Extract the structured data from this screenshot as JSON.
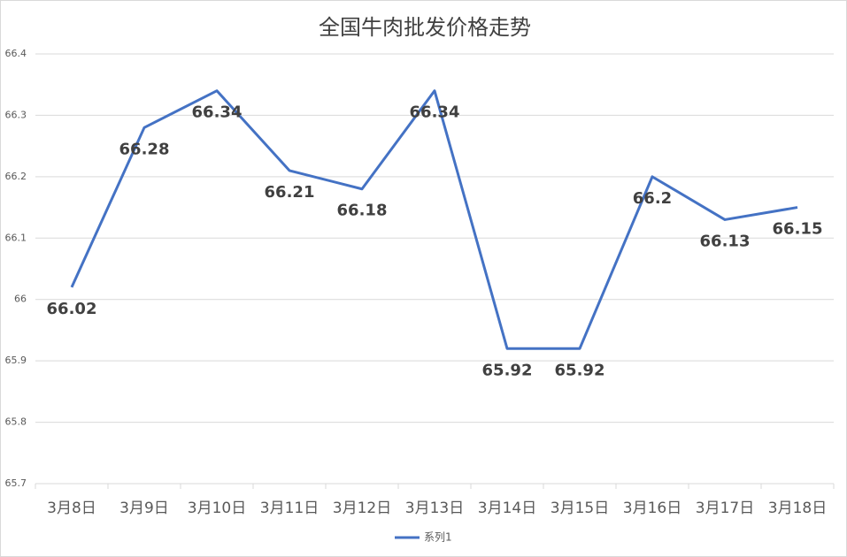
{
  "chart_data": {
    "type": "line",
    "title": "全国牛肉批发价格走势",
    "categories": [
      "3月8日",
      "3月9日",
      "3月10日",
      "3月11日",
      "3月12日",
      "3月13日",
      "3月14日",
      "3月15日",
      "3月16日",
      "3月17日",
      "3月18日"
    ],
    "series": [
      {
        "name": "系列1",
        "color": "#4472c4",
        "values": [
          66.02,
          66.28,
          66.34,
          66.21,
          66.18,
          66.34,
          65.92,
          65.92,
          66.2,
          66.13,
          66.15
        ]
      }
    ],
    "ylim": [
      65.7,
      66.4
    ],
    "yticks": [
      65.7,
      65.8,
      65.9,
      66,
      66.1,
      66.2,
      66.3,
      66.4
    ],
    "grid": true,
    "legend": "bottom"
  }
}
